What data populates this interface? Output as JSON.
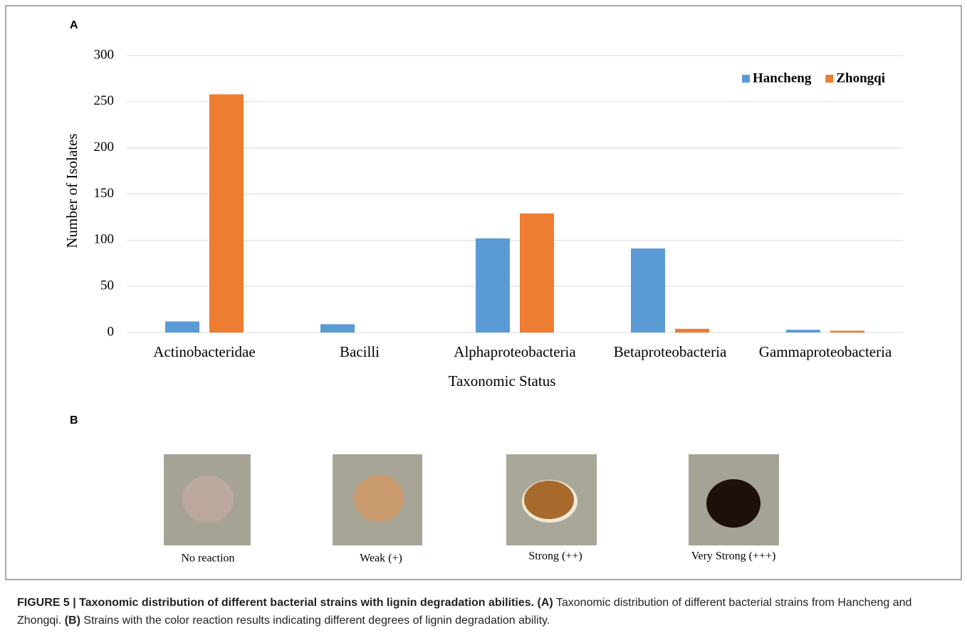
{
  "chart_data": {
    "type": "bar",
    "panel_label": "A",
    "x_label": "Taxonomic Status",
    "y_label": "Number of Isolates",
    "categories": [
      "Actinobacteridae",
      "Bacilli",
      "Alphaproteobacteria",
      "Betaproteobacteria",
      "Gammaproteobacteria"
    ],
    "series": [
      {
        "name": "Hancheng",
        "color": "#5b9bd5",
        "values": [
          12,
          9,
          102,
          91,
          3
        ]
      },
      {
        "name": "Zhongqi",
        "color": "#ed7d31",
        "values": [
          258,
          0,
          129,
          4,
          2
        ]
      }
    ],
    "ylim": [
      0,
      300
    ],
    "yticks": [
      0,
      50,
      100,
      150,
      200,
      250,
      300
    ],
    "grid": true,
    "legend": "top-right"
  },
  "panel_b": {
    "panel_label": "B",
    "images": [
      "No reaction",
      "Weak (+)",
      "Strong (++)",
      "Very Strong (+++)"
    ]
  },
  "caption": {
    "title": "FIGURE 5 | Taxonomic distribution of different bacterial strains with lignin degradation abilities.",
    "a_label": "(A)",
    "a_text": "Taxonomic distribution of different bacterial strains from Hancheng and Zhongqi.",
    "b_label": "(B)",
    "b_text": "Strains with the color reaction results indicating different degrees of lignin degradation ability."
  }
}
